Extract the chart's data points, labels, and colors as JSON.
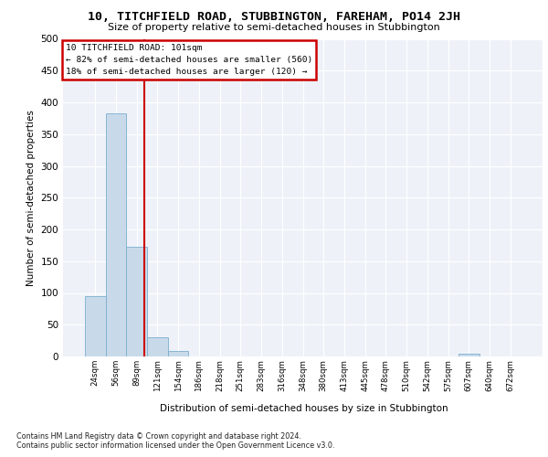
{
  "title": "10, TITCHFIELD ROAD, STUBBINGTON, FAREHAM, PO14 2JH",
  "subtitle": "Size of property relative to semi-detached houses in Stubbington",
  "xlabel": "Distribution of semi-detached houses by size in Stubbington",
  "ylabel": "Number of semi-detached properties",
  "categories": [
    "24sqm",
    "56sqm",
    "89sqm",
    "121sqm",
    "154sqm",
    "186sqm",
    "218sqm",
    "251sqm",
    "283sqm",
    "316sqm",
    "348sqm",
    "380sqm",
    "413sqm",
    "445sqm",
    "478sqm",
    "510sqm",
    "542sqm",
    "575sqm",
    "607sqm",
    "640sqm",
    "672sqm"
  ],
  "values": [
    95,
    383,
    172,
    30,
    9,
    0,
    0,
    0,
    0,
    0,
    0,
    0,
    0,
    0,
    0,
    0,
    0,
    0,
    5,
    0,
    0
  ],
  "bar_color": "#c8daea",
  "bar_edge_color": "#7baece",
  "vline_color": "#cc0000",
  "vline_x": 2.37,
  "annotation_text": "10 TITCHFIELD ROAD: 101sqm\n← 82% of semi-detached houses are smaller (560)\n18% of semi-detached houses are larger (120) →",
  "ylim": [
    0,
    500
  ],
  "yticks": [
    0,
    50,
    100,
    150,
    200,
    250,
    300,
    350,
    400,
    450,
    500
  ],
  "bg_color": "#eef2f8",
  "grid_color": "#ffffff",
  "footer1": "Contains HM Land Registry data © Crown copyright and database right 2024.",
  "footer2": "Contains public sector information licensed under the Open Government Licence v3.0."
}
